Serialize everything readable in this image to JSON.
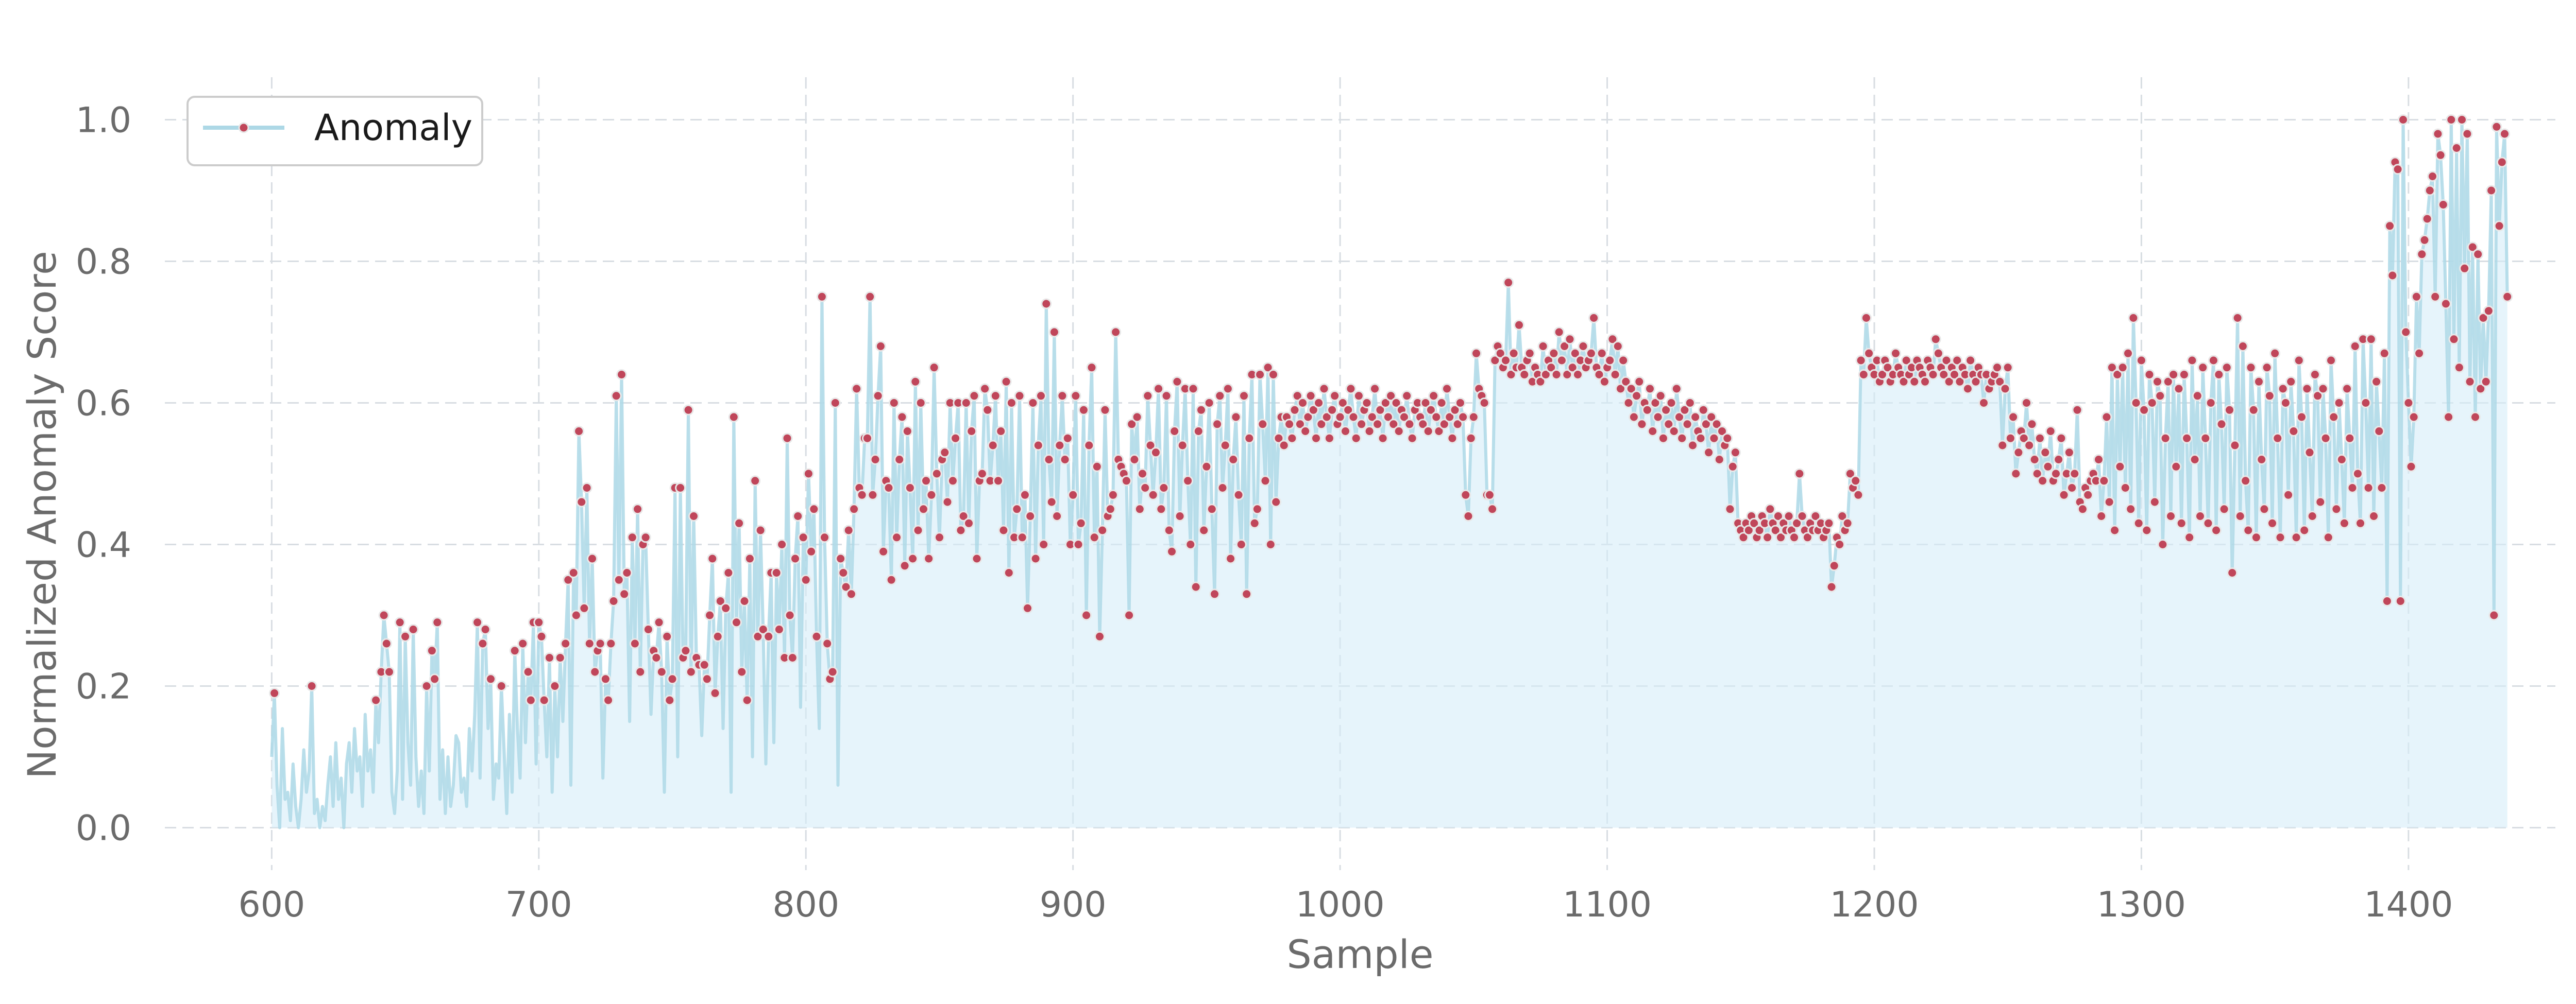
{
  "chart_data": {
    "type": "line",
    "title": "",
    "xlabel": "Sample",
    "ylabel": "Normalized Anomaly Score",
    "xlim": [
      560,
      1455
    ],
    "ylim": [
      -0.06,
      1.06
    ],
    "xticks": [
      600,
      700,
      800,
      900,
      1000,
      1100,
      1200,
      1300,
      1400
    ],
    "yticks": [
      0.0,
      0.2,
      0.4,
      0.6,
      0.8,
      1.0
    ],
    "ytick_labels": [
      "0.0",
      "0.2",
      "0.4",
      "0.6",
      "0.8",
      "1.0"
    ],
    "grid": true,
    "legend": {
      "position": "top-left",
      "entries": [
        "Anomaly"
      ]
    },
    "colors": {
      "line": "#add8e6",
      "fill": "#d6ecf8",
      "marker": "#c0465a",
      "marker_edge": "#e8e8e8"
    },
    "series": [
      {
        "name": "Anomaly",
        "x_start": 600,
        "step": 1,
        "marker_threshold": 0.18,
        "values": [
          0.1,
          0.19,
          0.06,
          0.0,
          0.14,
          0.04,
          0.05,
          0.01,
          0.09,
          0.03,
          0.0,
          0.04,
          0.11,
          0.05,
          0.08,
          0.2,
          0.02,
          0.04,
          0.0,
          0.03,
          0.01,
          0.06,
          0.1,
          0.03,
          0.12,
          0.04,
          0.07,
          0.0,
          0.09,
          0.12,
          0.05,
          0.14,
          0.08,
          0.1,
          0.03,
          0.16,
          0.08,
          0.11,
          0.05,
          0.18,
          0.12,
          0.22,
          0.3,
          0.26,
          0.22,
          0.05,
          0.02,
          0.08,
          0.29,
          0.04,
          0.27,
          0.12,
          0.06,
          0.28,
          0.1,
          0.03,
          0.08,
          0.02,
          0.2,
          0.08,
          0.25,
          0.21,
          0.29,
          0.04,
          0.11,
          0.02,
          0.1,
          0.03,
          0.06,
          0.13,
          0.12,
          0.05,
          0.07,
          0.03,
          0.14,
          0.08,
          0.16,
          0.29,
          0.07,
          0.26,
          0.28,
          0.14,
          0.21,
          0.04,
          0.09,
          0.07,
          0.2,
          0.11,
          0.02,
          0.16,
          0.05,
          0.25,
          0.14,
          0.07,
          0.26,
          0.12,
          0.22,
          0.18,
          0.29,
          0.09,
          0.29,
          0.27,
          0.18,
          0.1,
          0.24,
          0.05,
          0.2,
          0.1,
          0.24,
          0.15,
          0.26,
          0.35,
          0.06,
          0.36,
          0.3,
          0.56,
          0.46,
          0.31,
          0.48,
          0.26,
          0.38,
          0.22,
          0.25,
          0.26,
          0.07,
          0.21,
          0.18,
          0.26,
          0.32,
          0.61,
          0.35,
          0.64,
          0.33,
          0.36,
          0.15,
          0.41,
          0.26,
          0.45,
          0.22,
          0.4,
          0.41,
          0.28,
          0.16,
          0.25,
          0.24,
          0.29,
          0.22,
          0.05,
          0.27,
          0.18,
          0.21,
          0.48,
          0.1,
          0.48,
          0.24,
          0.25,
          0.59,
          0.22,
          0.44,
          0.24,
          0.23,
          0.13,
          0.23,
          0.21,
          0.3,
          0.38,
          0.19,
          0.27,
          0.32,
          0.14,
          0.31,
          0.36,
          0.05,
          0.58,
          0.29,
          0.43,
          0.22,
          0.32,
          0.18,
          0.38,
          0.1,
          0.49,
          0.27,
          0.42,
          0.28,
          0.09,
          0.27,
          0.36,
          0.12,
          0.36,
          0.28,
          0.4,
          0.24,
          0.55,
          0.3,
          0.24,
          0.38,
          0.44,
          0.17,
          0.41,
          0.35,
          0.5,
          0.39,
          0.45,
          0.27,
          0.14,
          0.75,
          0.41,
          0.26,
          0.21,
          0.22,
          0.6,
          0.06,
          0.38,
          0.36,
          0.34,
          0.42,
          0.33,
          0.45,
          0.62,
          0.48,
          0.47,
          0.55,
          0.55,
          0.75,
          0.47,
          0.52,
          0.61,
          0.68,
          0.39,
          0.49,
          0.48,
          0.35,
          0.6,
          0.41,
          0.52,
          0.58,
          0.37,
          0.56,
          0.48,
          0.38,
          0.63,
          0.42,
          0.6,
          0.45,
          0.49,
          0.38,
          0.47,
          0.65,
          0.5,
          0.41,
          0.52,
          0.53,
          0.46,
          0.6,
          0.49,
          0.55,
          0.6,
          0.42,
          0.44,
          0.6,
          0.43,
          0.56,
          0.61,
          0.38,
          0.49,
          0.5,
          0.62,
          0.59,
          0.49,
          0.54,
          0.61,
          0.49,
          0.56,
          0.42,
          0.63,
          0.36,
          0.6,
          0.41,
          0.45,
          0.61,
          0.41,
          0.47,
          0.31,
          0.44,
          0.6,
          0.38,
          0.54,
          0.61,
          0.4,
          0.74,
          0.52,
          0.46,
          0.7,
          0.44,
          0.54,
          0.61,
          0.52,
          0.55,
          0.4,
          0.47,
          0.61,
          0.4,
          0.43,
          0.59,
          0.3,
          0.54,
          0.65,
          0.41,
          0.51,
          0.27,
          0.42,
          0.59,
          0.44,
          0.45,
          0.47,
          0.7,
          0.52,
          0.51,
          0.5,
          0.49,
          0.3,
          0.57,
          0.52,
          0.58,
          0.45,
          0.5,
          0.48,
          0.61,
          0.54,
          0.47,
          0.53,
          0.62,
          0.45,
          0.48,
          0.61,
          0.42,
          0.39,
          0.56,
          0.63,
          0.44,
          0.54,
          0.62,
          0.49,
          0.4,
          0.62,
          0.34,
          0.56,
          0.59,
          0.42,
          0.51,
          0.6,
          0.45,
          0.33,
          0.57,
          0.61,
          0.48,
          0.54,
          0.62,
          0.38,
          0.52,
          0.58,
          0.47,
          0.4,
          0.61,
          0.33,
          0.55,
          0.64,
          0.43,
          0.45,
          0.64,
          0.57,
          0.49,
          0.65,
          0.4,
          0.64,
          0.46,
          0.55,
          0.58,
          0.54,
          0.58,
          0.57,
          0.55,
          0.59,
          0.61,
          0.57,
          0.6,
          0.56,
          0.58,
          0.61,
          0.59,
          0.55,
          0.6,
          0.57,
          0.62,
          0.58,
          0.55,
          0.59,
          0.61,
          0.57,
          0.58,
          0.6,
          0.56,
          0.59,
          0.62,
          0.58,
          0.55,
          0.61,
          0.57,
          0.59,
          0.6,
          0.56,
          0.58,
          0.62,
          0.57,
          0.59,
          0.55,
          0.6,
          0.58,
          0.61,
          0.57,
          0.6,
          0.56,
          0.59,
          0.58,
          0.61,
          0.57,
          0.55,
          0.59,
          0.6,
          0.58,
          0.57,
          0.6,
          0.56,
          0.59,
          0.61,
          0.58,
          0.56,
          0.6,
          0.57,
          0.62,
          0.58,
          0.55,
          0.59,
          0.57,
          0.6,
          0.58,
          0.47,
          0.44,
          0.55,
          0.58,
          0.67,
          0.62,
          0.61,
          0.6,
          0.47,
          0.47,
          0.45,
          0.66,
          0.68,
          0.67,
          0.65,
          0.66,
          0.77,
          0.64,
          0.67,
          0.65,
          0.71,
          0.65,
          0.64,
          0.66,
          0.67,
          0.63,
          0.65,
          0.64,
          0.63,
          0.68,
          0.64,
          0.66,
          0.65,
          0.67,
          0.64,
          0.7,
          0.66,
          0.68,
          0.64,
          0.69,
          0.65,
          0.67,
          0.64,
          0.66,
          0.68,
          0.65,
          0.66,
          0.67,
          0.72,
          0.65,
          0.64,
          0.67,
          0.63,
          0.65,
          0.66,
          0.69,
          0.64,
          0.68,
          0.62,
          0.66,
          0.63,
          0.6,
          0.62,
          0.58,
          0.61,
          0.63,
          0.57,
          0.6,
          0.59,
          0.62,
          0.56,
          0.6,
          0.58,
          0.61,
          0.55,
          0.59,
          0.57,
          0.6,
          0.56,
          0.62,
          0.58,
          0.55,
          0.59,
          0.57,
          0.6,
          0.54,
          0.58,
          0.56,
          0.55,
          0.59,
          0.57,
          0.53,
          0.58,
          0.55,
          0.57,
          0.52,
          0.56,
          0.54,
          0.55,
          0.45,
          0.51,
          0.53,
          0.43,
          0.42,
          0.41,
          0.43,
          0.42,
          0.44,
          0.43,
          0.41,
          0.42,
          0.44,
          0.43,
          0.41,
          0.45,
          0.43,
          0.42,
          0.44,
          0.41,
          0.43,
          0.42,
          0.44,
          0.42,
          0.41,
          0.43,
          0.5,
          0.44,
          0.42,
          0.41,
          0.43,
          0.42,
          0.44,
          0.42,
          0.43,
          0.41,
          0.42,
          0.43,
          0.34,
          0.37,
          0.41,
          0.4,
          0.44,
          0.42,
          0.43,
          0.5,
          0.48,
          0.49,
          0.47,
          0.66,
          0.64,
          0.72,
          0.67,
          0.65,
          0.64,
          0.66,
          0.63,
          0.64,
          0.66,
          0.65,
          0.63,
          0.64,
          0.67,
          0.65,
          0.64,
          0.63,
          0.66,
          0.64,
          0.65,
          0.63,
          0.66,
          0.65,
          0.64,
          0.63,
          0.66,
          0.65,
          0.64,
          0.69,
          0.67,
          0.65,
          0.64,
          0.66,
          0.63,
          0.65,
          0.64,
          0.66,
          0.63,
          0.65,
          0.64,
          0.62,
          0.66,
          0.64,
          0.63,
          0.65,
          0.64,
          0.6,
          0.64,
          0.62,
          0.63,
          0.64,
          0.65,
          0.63,
          0.54,
          0.62,
          0.65,
          0.55,
          0.58,
          0.5,
          0.53,
          0.56,
          0.55,
          0.6,
          0.54,
          0.57,
          0.52,
          0.5,
          0.55,
          0.49,
          0.53,
          0.51,
          0.56,
          0.49,
          0.5,
          0.52,
          0.55,
          0.47,
          0.5,
          0.53,
          0.48,
          0.5,
          0.59,
          0.46,
          0.45,
          0.48,
          0.47,
          0.49,
          0.5,
          0.49,
          0.52,
          0.44,
          0.49,
          0.58,
          0.46,
          0.65,
          0.42,
          0.64,
          0.51,
          0.65,
          0.48,
          0.67,
          0.45,
          0.72,
          0.6,
          0.43,
          0.66,
          0.59,
          0.42,
          0.64,
          0.6,
          0.46,
          0.63,
          0.61,
          0.4,
          0.55,
          0.63,
          0.44,
          0.64,
          0.51,
          0.62,
          0.43,
          0.64,
          0.55,
          0.41,
          0.66,
          0.52,
          0.61,
          0.44,
          0.65,
          0.55,
          0.43,
          0.6,
          0.66,
          0.42,
          0.64,
          0.57,
          0.45,
          0.65,
          0.59,
          0.36,
          0.54,
          0.72,
          0.44,
          0.68,
          0.49,
          0.42,
          0.65,
          0.59,
          0.41,
          0.63,
          0.52,
          0.45,
          0.65,
          0.61,
          0.43,
          0.67,
          0.55,
          0.41,
          0.62,
          0.6,
          0.47,
          0.63,
          0.56,
          0.41,
          0.66,
          0.58,
          0.42,
          0.62,
          0.53,
          0.44,
          0.64,
          0.61,
          0.46,
          0.62,
          0.55,
          0.41,
          0.66,
          0.58,
          0.45,
          0.6,
          0.52,
          0.43,
          0.62,
          0.55,
          0.48,
          0.68,
          0.5,
          0.43,
          0.69,
          0.6,
          0.48,
          0.69,
          0.44,
          0.63,
          0.56,
          0.48,
          0.67,
          0.32,
          0.85,
          0.78,
          0.94,
          0.93,
          0.32,
          1.0,
          0.7,
          0.6,
          0.51,
          0.58,
          0.75,
          0.67,
          0.81,
          0.83,
          0.86,
          0.9,
          0.92,
          0.75,
          0.98,
          0.95,
          0.88,
          0.74,
          0.58,
          1.0,
          0.69,
          0.96,
          0.65,
          1.0,
          0.79,
          0.98,
          0.63,
          0.82,
          0.58,
          0.81,
          0.62,
          0.72,
          0.63,
          0.73,
          0.9,
          0.3,
          0.99,
          0.85,
          0.94,
          0.98,
          0.75
        ]
      }
    ]
  }
}
